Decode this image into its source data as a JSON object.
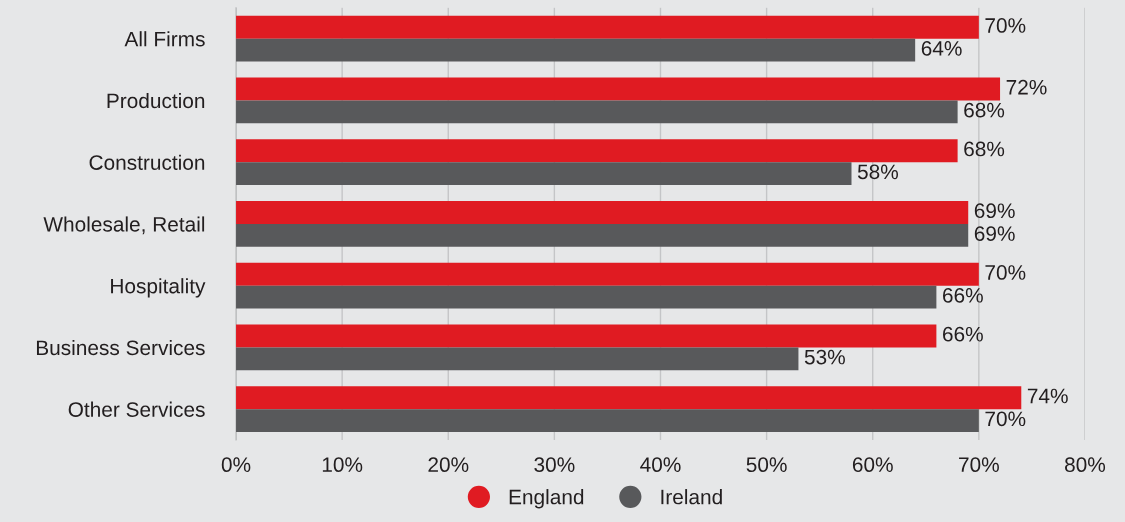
{
  "chart_data": {
    "type": "bar",
    "orientation": "horizontal",
    "categories": [
      "All Firms",
      "Production",
      "Construction",
      "Wholesale, Retail",
      "Hospitality",
      "Business Services",
      "Other Services"
    ],
    "series": [
      {
        "name": "England",
        "color": "#e01b22",
        "values": [
          70,
          72,
          68,
          69,
          70,
          66,
          74
        ],
        "value_labels": [
          "70%",
          "72%",
          "68%",
          "69%",
          "70%",
          "66%",
          "74%"
        ]
      },
      {
        "name": "Ireland",
        "color": "#58595b",
        "values": [
          64,
          68,
          58,
          69,
          66,
          53,
          70
        ],
        "value_labels": [
          "64%",
          "68%",
          "58%",
          "69%",
          "66%",
          "53%",
          "70%"
        ]
      }
    ],
    "xlim": [
      0,
      80
    ],
    "xticks": [
      {
        "value": 0,
        "label": "0%"
      },
      {
        "value": 10,
        "label": "10%"
      },
      {
        "value": 20,
        "label": "20%"
      },
      {
        "value": 30,
        "label": "30%"
      },
      {
        "value": 40,
        "label": "40%"
      },
      {
        "value": 50,
        "label": "50%"
      },
      {
        "value": 60,
        "label": "60%"
      },
      {
        "value": 70,
        "label": "70%"
      },
      {
        "value": 80,
        "label": "80%"
      }
    ],
    "grid": "x",
    "legend": "bottom"
  }
}
